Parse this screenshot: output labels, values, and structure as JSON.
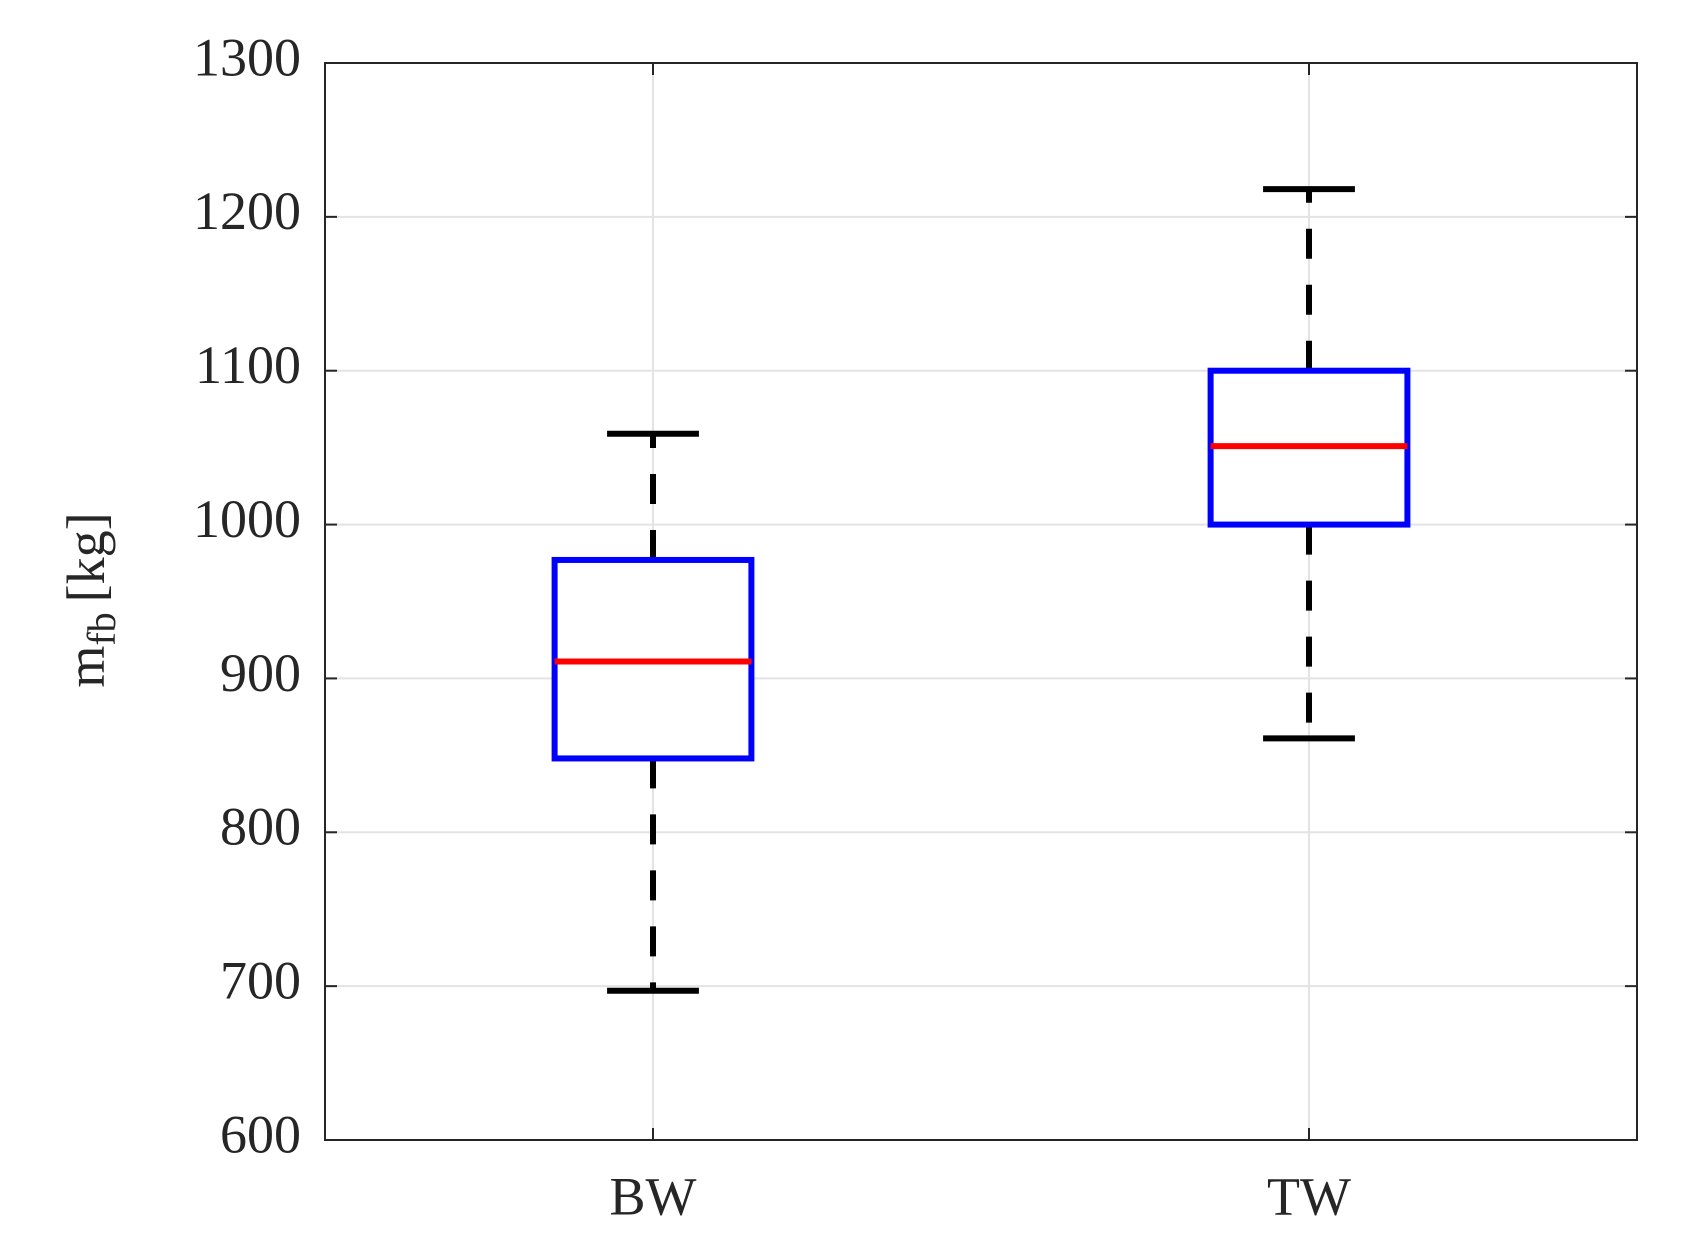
{
  "chart_data": {
    "type": "box",
    "categories": [
      "BW",
      "TW"
    ],
    "series": [
      {
        "box_color": "#0000ff",
        "median_color": "#ff0000",
        "whisker_color": "#000000",
        "whisker_low": [
          697,
          861
        ],
        "q1": [
          848,
          1000
        ],
        "median": [
          911,
          1051
        ],
        "q3": [
          977,
          1100
        ],
        "whisker_high": [
          1059,
          1218
        ]
      }
    ],
    "y_label": "m",
    "y_label_subscript": "fb",
    "y_label_unit": "[kg]",
    "ylim": [
      600,
      1300
    ],
    "yticks": [
      600,
      700,
      800,
      900,
      1000,
      1100,
      1200,
      1300
    ],
    "grid": true
  }
}
